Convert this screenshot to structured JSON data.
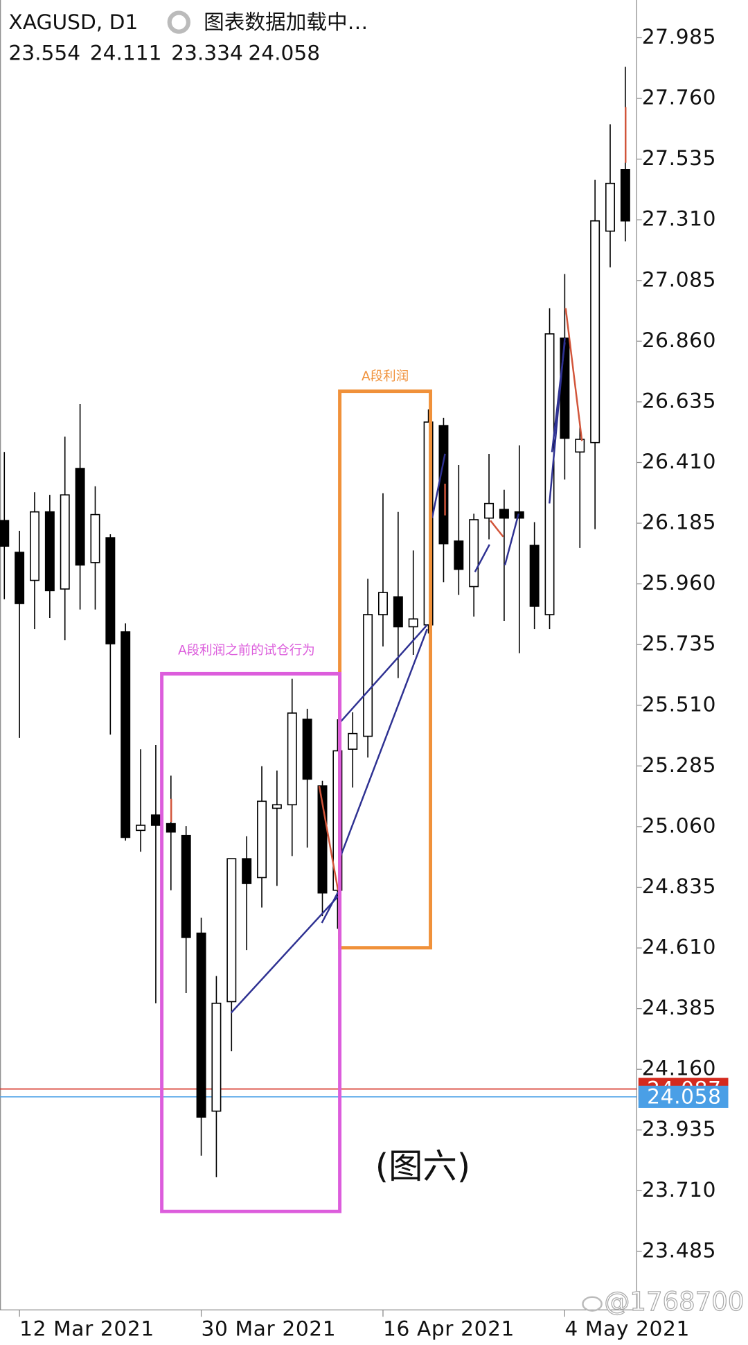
{
  "header": {
    "symbol": "XAGUSD, D1",
    "status": "图表数据加载中…",
    "ohlc": [
      23.554,
      24.111,
      23.334,
      24.058
    ]
  },
  "chart_data": {
    "type": "candlestick",
    "categories": [
      null,
      "12 Mar 2021",
      null,
      null,
      null,
      null,
      null,
      null,
      null,
      null,
      null,
      null,
      null,
      "30 Mar 2021",
      null,
      null,
      null,
      null,
      null,
      null,
      null,
      null,
      null,
      null,
      null,
      "16 Apr 2021",
      null,
      null,
      null,
      null,
      null,
      null,
      null,
      null,
      null,
      null,
      null,
      "4 May 2021",
      null,
      null,
      null,
      null
    ],
    "open": [
      26.195,
      26.077,
      25.973,
      26.227,
      25.941,
      26.388,
      26.039,
      26.131,
      25.782,
      25.046,
      25.103,
      25.071,
      25.027,
      24.665,
      24.005,
      24.411,
      24.941,
      24.871,
      25.128,
      25.141,
      25.458,
      25.211,
      24.824,
      25.347,
      25.395,
      25.846,
      25.912,
      25.801,
      25.808,
      26.547,
      26.119,
      25.95,
      26.204,
      26.236,
      26.227,
      26.103,
      25.846,
      26.871,
      26.449,
      26.484,
      27.268,
      27.496
    ],
    "high": [
      26.449,
      26.157,
      26.3,
      26.29,
      26.506,
      26.627,
      26.322,
      26.144,
      25.814,
      25.347,
      25.363,
      25.249,
      25.062,
      24.722,
      24.506,
      24.941,
      25.024,
      25.284,
      25.268,
      25.608,
      25.497,
      25.23,
      25.458,
      25.484,
      25.979,
      26.296,
      26.227,
      26.084,
      26.607,
      26.576,
      26.401,
      26.22,
      26.442,
      26.309,
      26.474,
      26.189,
      26.982,
      27.109,
      26.563,
      27.458,
      27.664,
      27.877
    ],
    "low": [
      25.903,
      25.389,
      25.792,
      25.833,
      25.751,
      25.865,
      25.865,
      25.401,
      25.008,
      24.967,
      24.405,
      24.824,
      24.443,
      23.84,
      23.76,
      24.227,
      24.602,
      24.76,
      24.84,
      24.951,
      24.982,
      24.728,
      24.681,
      25.205,
      25.316,
      25.728,
      25.611,
      25.697,
      25.776,
      25.966,
      25.919,
      25.839,
      26.125,
      25.823,
      25.703,
      25.792,
      25.792,
      26.347,
      26.093,
      26.163,
      27.134,
      27.23
    ],
    "close": [
      26.1,
      25.887,
      26.227,
      25.935,
      26.29,
      26.03,
      26.217,
      25.738,
      25.02,
      25.065,
      25.065,
      25.04,
      24.649,
      23.983,
      24.405,
      24.941,
      24.849,
      25.154,
      25.141,
      25.481,
      25.236,
      24.814,
      25.341,
      25.405,
      25.846,
      25.928,
      25.801,
      25.83,
      26.56,
      26.109,
      26.014,
      26.198,
      26.258,
      26.204,
      26.204,
      25.877,
      26.887,
      26.5,
      26.496,
      27.306,
      27.445,
      27.306
    ],
    "up_color": "#ffffff",
    "down_color": "#000000",
    "ylim": [
      23.268,
      28.125
    ],
    "yticks": [
      27.985,
      {
        "value": 27.76,
        "label": "27.760"
      },
      27.535,
      {
        "value": 27.31,
        "label": "27.310"
      },
      27.085,
      {
        "value": 26.86,
        "label": "26.860"
      },
      26.635,
      {
        "value": 26.41,
        "label": "26.410"
      },
      26.185,
      {
        "value": 25.96,
        "label": "25.960"
      },
      25.735,
      {
        "value": 25.51,
        "label": "25.510"
      },
      25.285,
      {
        "value": 25.06,
        "label": "25.060"
      },
      24.835,
      {
        "value": 24.61,
        "label": "24.610"
      },
      24.385,
      {
        "value": 24.16,
        "label": "24.160"
      },
      23.935,
      {
        "value": 23.71,
        "label": "23.710"
      },
      23.485
    ],
    "ask_line": {
      "value": 24.087,
      "color": "#d42a1e"
    },
    "bid_line": {
      "value": 24.058,
      "color": "#4a9fe6"
    },
    "annotations": [
      {
        "text": "A段利润",
        "color": "#f0913a"
      },
      {
        "text": "A段利润之前的试仓行为",
        "color": "#dc5ddc"
      }
    ]
  },
  "figure_label": "(图六)",
  "watermark": "@1768700"
}
